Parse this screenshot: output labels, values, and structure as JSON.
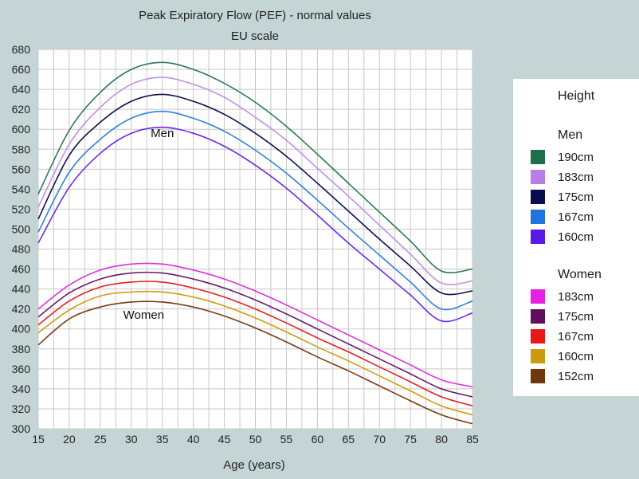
{
  "chart_data": {
    "type": "line",
    "title": "Peak Expiratory Flow (PEF) - normal values",
    "subtitle": "EU scale",
    "xlabel": "Age (years)",
    "ylabel": "",
    "xlim": [
      15,
      85
    ],
    "ylim": [
      300,
      680
    ],
    "x_ticks": [
      15,
      20,
      25,
      30,
      35,
      40,
      45,
      50,
      55,
      60,
      65,
      70,
      75,
      80,
      85
    ],
    "y_ticks": [
      300,
      320,
      340,
      360,
      380,
      400,
      420,
      440,
      460,
      480,
      500,
      520,
      540,
      560,
      580,
      600,
      620,
      640,
      660,
      680
    ],
    "grid": true,
    "x": [
      15,
      20,
      25,
      30,
      35,
      40,
      45,
      50,
      55,
      60,
      65,
      70,
      75,
      80,
      85
    ],
    "series": [
      {
        "name": "190cm",
        "group": "Men",
        "color": "#2a7a55",
        "values": [
          535,
          599,
          637,
          660,
          667,
          660,
          646,
          627,
          603,
          575,
          546,
          517,
          488,
          458,
          460
        ]
      },
      {
        "name": "183cm",
        "group": "Men",
        "color": "#c090e8",
        "values": [
          522,
          585,
          622,
          645,
          652,
          645,
          632,
          612,
          589,
          561,
          533,
          504,
          475,
          446,
          448
        ]
      },
      {
        "name": "175cm",
        "group": "Men",
        "color": "#101050",
        "values": [
          510,
          574,
          607,
          628,
          635,
          628,
          615,
          596,
          573,
          546,
          518,
          490,
          463,
          436,
          438
        ]
      },
      {
        "name": "167cm",
        "group": "Men",
        "color": "#2f80dd",
        "values": [
          497,
          557,
          590,
          611,
          618,
          611,
          598,
          579,
          556,
          529,
          501,
          474,
          447,
          420,
          428
        ]
      },
      {
        "name": "160cm",
        "group": "Men",
        "color": "#6a2ae8",
        "values": [
          486,
          542,
          576,
          596,
          602,
          596,
          583,
          564,
          541,
          514,
          486,
          460,
          434,
          408,
          416
        ]
      },
      {
        "name": "183cm",
        "group": "Women",
        "color": "#e030e0",
        "values": [
          420,
          444,
          459,
          465,
          465,
          459,
          450,
          438,
          424,
          409,
          394,
          379,
          364,
          349,
          342
        ]
      },
      {
        "name": "175cm",
        "group": "Women",
        "color": "#6a1a6a",
        "values": [
          412,
          436,
          450,
          456,
          456,
          450,
          441,
          429,
          415,
          400,
          385,
          370,
          355,
          340,
          332
        ]
      },
      {
        "name": "167cm",
        "group": "Women",
        "color": "#e82020",
        "values": [
          404,
          428,
          442,
          447,
          447,
          441,
          432,
          420,
          406,
          391,
          377,
          362,
          347,
          332,
          323
        ]
      },
      {
        "name": "160cm",
        "group": "Women",
        "color": "#d49a10",
        "values": [
          396,
          419,
          433,
          437,
          437,
          432,
          423,
          411,
          397,
          382,
          368,
          353,
          338,
          323,
          314
        ]
      },
      {
        "name": "152cm",
        "group": "Women",
        "color": "#7a3a10",
        "values": [
          384,
          410,
          422,
          427,
          427,
          422,
          413,
          401,
          387,
          372,
          358,
          343,
          328,
          314,
          305
        ]
      }
    ],
    "annotations": [
      {
        "text": "Men",
        "x": 35,
        "y": 592
      },
      {
        "text": "Women",
        "x": 32,
        "y": 410
      }
    ]
  },
  "legend": {
    "title": "Height",
    "groups": [
      {
        "title": "Men",
        "items": [
          {
            "label": "190cm",
            "color": "#1f6e4e"
          },
          {
            "label": "183cm",
            "color": "#b77fe6"
          },
          {
            "label": "175cm",
            "color": "#0c0c50"
          },
          {
            "label": "167cm",
            "color": "#1f74e0"
          },
          {
            "label": "160cm",
            "color": "#5a1ae6"
          }
        ]
      },
      {
        "title": "Women",
        "items": [
          {
            "label": "183cm",
            "color": "#e51fe5"
          },
          {
            "label": "175cm",
            "color": "#5e0f5e"
          },
          {
            "label": "167cm",
            "color": "#e81818"
          },
          {
            "label": "160cm",
            "color": "#cc9a10"
          },
          {
            "label": "152cm",
            "color": "#70360e"
          }
        ]
      }
    ]
  }
}
